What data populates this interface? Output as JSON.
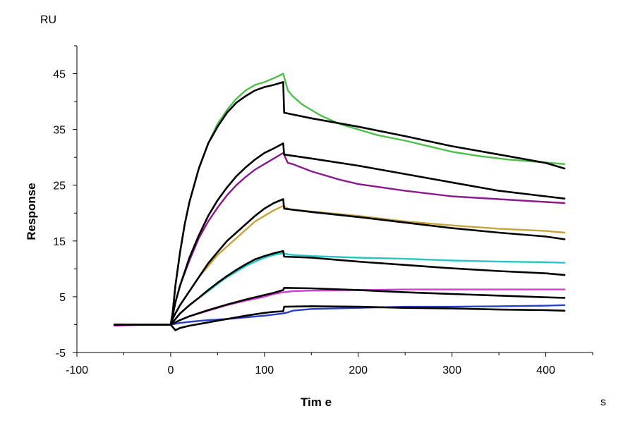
{
  "chart_data": {
    "type": "line",
    "title": "",
    "xlabel": "Tim e",
    "ylabel": "Response",
    "x_unit": "s",
    "y_unit": "RU",
    "xlim": [
      -100,
      450
    ],
    "ylim": [
      -5,
      50
    ],
    "x_ticks": [
      -100,
      0,
      100,
      200,
      300,
      400
    ],
    "x_tick_labels": [
      "-100",
      "0",
      "100",
      "200",
      "300",
      "400"
    ],
    "y_ticks": [
      -5,
      5,
      15,
      25,
      35,
      45
    ],
    "y_tick_labels": [
      "-5",
      "5",
      "15",
      "25",
      "35",
      "45"
    ],
    "grid": false,
    "legend": "none",
    "series": [
      {
        "kind": "measured",
        "color": "#4dc04a",
        "x": [
          -60,
          -30,
          0,
          2,
          5,
          10,
          15,
          20,
          30,
          40,
          50,
          60,
          70,
          80,
          90,
          100,
          110,
          120,
          125,
          130,
          140,
          150,
          160,
          180,
          200,
          220,
          250,
          280,
          300,
          330,
          360,
          390,
          420
        ],
        "y": [
          0.0,
          0.0,
          0.0,
          2.0,
          7.0,
          13.0,
          18.0,
          22.0,
          28.0,
          32.5,
          36.0,
          38.5,
          40.5,
          42.0,
          43.0,
          43.5,
          44.2,
          45.0,
          42.0,
          41.0,
          39.5,
          38.5,
          37.5,
          36.0,
          35.0,
          34.0,
          33.0,
          31.8,
          31.0,
          30.2,
          29.6,
          29.2,
          28.8
        ]
      },
      {
        "kind": "measured",
        "color": "#8b1a8f",
        "x": [
          -60,
          -30,
          0,
          2,
          5,
          10,
          20,
          30,
          40,
          50,
          60,
          70,
          80,
          90,
          100,
          110,
          120,
          125,
          130,
          150,
          180,
          200,
          250,
          300,
          350,
          400,
          420
        ],
        "y": [
          0.0,
          0.0,
          0.0,
          1.5,
          4.0,
          7.0,
          11.5,
          15.5,
          18.5,
          21.0,
          23.2,
          25.0,
          26.5,
          27.8,
          28.8,
          29.8,
          30.8,
          29.0,
          28.8,
          27.5,
          26.0,
          25.2,
          24.0,
          23.0,
          22.5,
          22.0,
          21.8
        ]
      },
      {
        "kind": "measured",
        "color": "#c9a23a",
        "x": [
          -60,
          -30,
          0,
          2,
          5,
          10,
          20,
          30,
          40,
          50,
          60,
          70,
          80,
          90,
          100,
          110,
          120,
          125,
          130,
          150,
          200,
          250,
          300,
          350,
          400,
          420
        ],
        "y": [
          0.0,
          0.0,
          0.0,
          1.0,
          2.0,
          3.5,
          6.0,
          8.5,
          10.5,
          12.5,
          14.0,
          15.5,
          17.0,
          18.5,
          19.5,
          20.5,
          21.3,
          20.8,
          20.6,
          20.3,
          19.5,
          18.5,
          17.8,
          17.2,
          16.8,
          16.5
        ]
      },
      {
        "kind": "measured",
        "color": "#28c4c4",
        "x": [
          -60,
          -30,
          0,
          5,
          10,
          20,
          30,
          40,
          50,
          60,
          70,
          80,
          90,
          100,
          110,
          120,
          125,
          130,
          150,
          200,
          250,
          300,
          350,
          400,
          420
        ],
        "y": [
          0.0,
          0.0,
          0.0,
          1.0,
          2.0,
          3.5,
          4.8,
          6.0,
          7.3,
          8.5,
          9.5,
          10.5,
          11.3,
          12.0,
          12.5,
          12.8,
          12.6,
          12.5,
          12.3,
          12.0,
          11.8,
          11.5,
          11.3,
          11.2,
          11.1
        ]
      },
      {
        "kind": "measured",
        "color": "#d23cd2",
        "x": [
          -60,
          -30,
          0,
          10,
          20,
          40,
          60,
          80,
          100,
          110,
          120,
          125,
          130,
          150,
          200,
          250,
          300,
          350,
          400,
          420
        ],
        "y": [
          -0.2,
          0.0,
          0.0,
          0.8,
          1.5,
          2.5,
          3.5,
          4.3,
          5.0,
          5.5,
          5.8,
          5.9,
          6.0,
          6.1,
          6.2,
          6.3,
          6.3,
          6.3,
          6.3,
          6.3
        ]
      },
      {
        "kind": "measured",
        "color": "#2a3fc8",
        "x": [
          -60,
          -30,
          0,
          10,
          20,
          40,
          60,
          80,
          100,
          110,
          120,
          125,
          130,
          150,
          200,
          250,
          300,
          350,
          400,
          420
        ],
        "y": [
          0.0,
          0.0,
          0.0,
          0.3,
          0.5,
          0.8,
          1.0,
          1.3,
          1.6,
          1.8,
          2.0,
          2.2,
          2.5,
          2.8,
          3.0,
          3.2,
          3.2,
          3.3,
          3.4,
          3.5
        ]
      },
      {
        "kind": "fit",
        "color": "#000000",
        "x": [
          -60,
          0,
          2,
          5,
          10,
          15,
          20,
          30,
          40,
          50,
          60,
          70,
          80,
          90,
          100,
          110,
          120,
          121,
          150,
          200,
          250,
          300,
          350,
          400,
          420
        ],
        "y": [
          0.0,
          0.0,
          2.0,
          7.0,
          13.0,
          18.0,
          22.0,
          28.0,
          32.5,
          35.5,
          38.0,
          39.8,
          41.0,
          42.0,
          42.6,
          43.0,
          43.5,
          38.0,
          37.0,
          35.5,
          33.8,
          32.0,
          30.5,
          29.0,
          28.0
        ]
      },
      {
        "kind": "fit",
        "color": "#000000",
        "x": [
          -60,
          0,
          2,
          5,
          10,
          20,
          30,
          40,
          50,
          60,
          70,
          80,
          90,
          100,
          110,
          120,
          121,
          150,
          200,
          250,
          300,
          350,
          400,
          420
        ],
        "y": [
          0.0,
          0.0,
          1.5,
          4.0,
          7.0,
          12.0,
          16.0,
          19.5,
          22.3,
          24.6,
          26.6,
          28.2,
          29.6,
          30.8,
          31.6,
          32.5,
          30.5,
          29.8,
          28.5,
          27.0,
          25.5,
          24.0,
          23.0,
          22.6
        ]
      },
      {
        "kind": "fit",
        "color": "#000000",
        "x": [
          -60,
          0,
          2,
          5,
          10,
          20,
          30,
          40,
          50,
          60,
          70,
          80,
          90,
          100,
          110,
          120,
          121,
          150,
          200,
          250,
          300,
          350,
          400,
          420
        ],
        "y": [
          0.0,
          0.0,
          1.0,
          2.0,
          3.5,
          6.0,
          8.5,
          11.0,
          13.0,
          15.0,
          16.5,
          18.0,
          19.5,
          20.8,
          21.8,
          22.5,
          20.8,
          20.2,
          19.3,
          18.3,
          17.3,
          16.5,
          15.8,
          15.3
        ]
      },
      {
        "kind": "fit",
        "color": "#000000",
        "x": [
          -60,
          0,
          5,
          10,
          20,
          30,
          40,
          50,
          60,
          70,
          80,
          90,
          100,
          110,
          120,
          121,
          150,
          200,
          250,
          300,
          350,
          400,
          420
        ],
        "y": [
          0.0,
          0.0,
          1.0,
          2.0,
          3.5,
          4.8,
          6.2,
          7.5,
          8.7,
          9.8,
          10.8,
          11.7,
          12.3,
          12.8,
          13.2,
          12.2,
          12.0,
          11.3,
          10.7,
          10.1,
          9.6,
          9.2,
          8.9
        ]
      },
      {
        "kind": "fit",
        "color": "#000000",
        "x": [
          -60,
          0,
          10,
          20,
          40,
          60,
          80,
          100,
          110,
          120,
          121,
          150,
          200,
          250,
          300,
          350,
          400,
          420
        ],
        "y": [
          0.0,
          0.0,
          0.8,
          1.5,
          2.6,
          3.6,
          4.5,
          5.3,
          5.7,
          6.2,
          6.6,
          6.5,
          6.2,
          5.8,
          5.5,
          5.2,
          4.9,
          4.8
        ]
      },
      {
        "kind": "fit",
        "color": "#000000",
        "x": [
          -60,
          0,
          5,
          10,
          20,
          40,
          60,
          80,
          100,
          110,
          120,
          121,
          150,
          200,
          250,
          300,
          350,
          400,
          420
        ],
        "y": [
          0.0,
          0.0,
          -1.0,
          -0.6,
          -0.2,
          0.4,
          1.0,
          1.6,
          2.1,
          2.3,
          2.4,
          3.2,
          3.3,
          3.2,
          3.0,
          2.9,
          2.7,
          2.6,
          2.5
        ]
      }
    ]
  }
}
